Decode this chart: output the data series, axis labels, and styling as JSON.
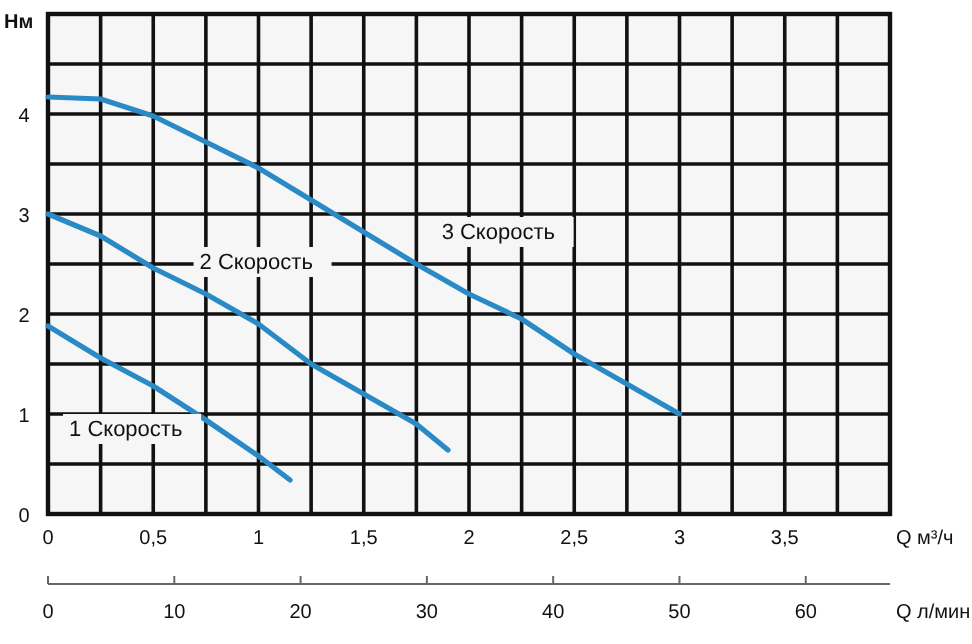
{
  "chart_data": {
    "type": "line",
    "xlabel": "Q м³/ч",
    "ylabel": "Нм",
    "x2label": "Q л/мин",
    "xlim": [
      0,
      4
    ],
    "xticks": [
      0,
      {
        "value": 0.25,
        "label": null
      },
      {
        "value": 0.5,
        "label": "0,5"
      },
      {
        "value": 0.75,
        "label": null
      },
      1,
      {
        "value": 1.25,
        "label": null
      },
      {
        "value": 1.5,
        "label": "1,5"
      },
      {
        "value": 1.75,
        "label": null
      },
      2,
      {
        "value": 2.25,
        "label": null
      },
      {
        "value": 2.5,
        "label": "2,5"
      },
      {
        "value": 2.75,
        "label": null
      },
      3,
      {
        "value": 3.25,
        "label": null
      },
      {
        "value": 3.5,
        "label": "3,5"
      },
      {
        "value": 3.75,
        "label": null
      }
    ],
    "x2lim": [
      0,
      66.67
    ],
    "x2ticks": [
      0,
      10,
      20,
      30,
      40,
      50,
      60
    ],
    "ylim": [
      0,
      5
    ],
    "yticks": [
      0,
      {
        "value": 0.5,
        "label": null
      },
      1,
      {
        "value": 1.5,
        "label": null
      },
      2,
      {
        "value": 2.5,
        "label": null
      },
      3,
      {
        "value": 3.5,
        "label": null
      },
      4,
      {
        "value": 4.5,
        "label": null
      }
    ],
    "grid": true,
    "marker": "none",
    "line_style": "solid",
    "series": [
      {
        "name": "1 Скорость",
        "color": "#2a8ac6",
        "x": [
          0,
          0.25,
          0.5,
          0.75,
          1,
          1.15
        ],
        "values": [
          1.88,
          1.56,
          1.28,
          0.94,
          0.58,
          0.34
        ]
      },
      {
        "name": "2 Скорость",
        "color": "#2a8ac6",
        "x": [
          0,
          0.25,
          0.5,
          0.75,
          1,
          1.25,
          1.5,
          1.75,
          1.9
        ],
        "values": [
          3.0,
          2.78,
          2.46,
          2.2,
          1.9,
          1.5,
          1.2,
          0.9,
          0.64
        ]
      },
      {
        "name": "3 Скорость",
        "color": "#2a8ac6",
        "x": [
          0,
          0.25,
          0.5,
          0.75,
          1,
          1.25,
          1.5,
          1.75,
          2,
          2.25,
          2.5,
          2.75,
          3
        ],
        "values": [
          4.17,
          4.15,
          3.98,
          3.72,
          3.46,
          3.14,
          2.82,
          2.5,
          2.2,
          1.95,
          1.6,
          1.3,
          1.0
        ]
      }
    ]
  }
}
